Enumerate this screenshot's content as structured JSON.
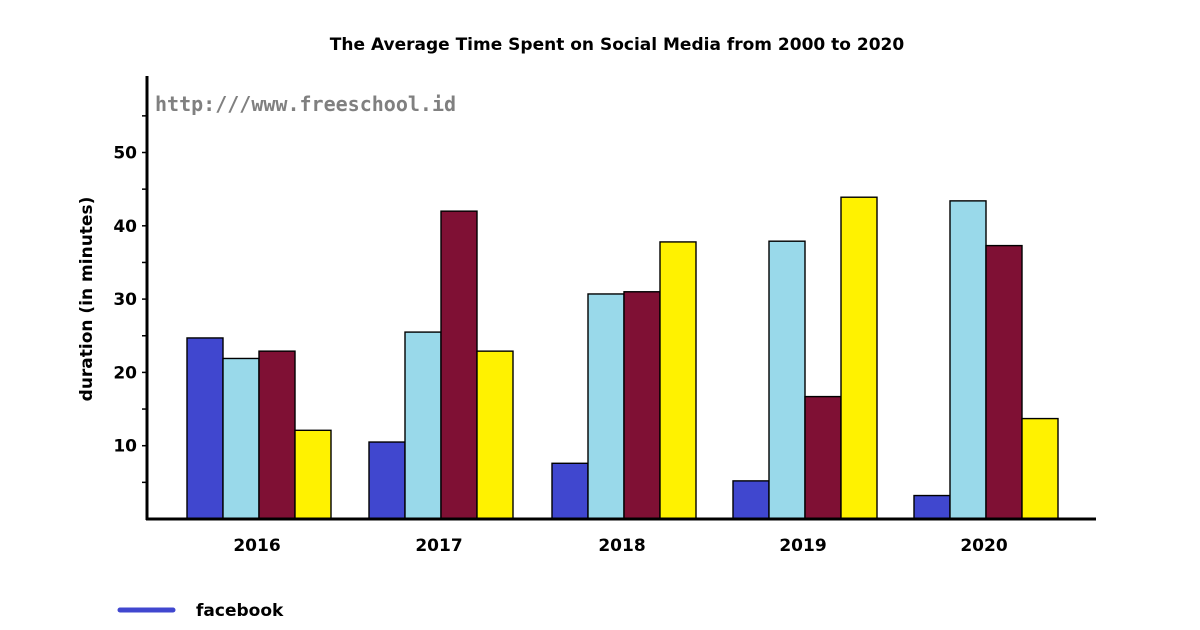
{
  "watermark": "http:///www.freeschool.id",
  "chart_data": {
    "type": "bar",
    "title": "The Average Time Spent on Social Media  from 2000 to 2020",
    "ylabel": "duration (in minutes)",
    "xlabel": "",
    "ylim": [
      0,
      60
    ],
    "yticks": [
      10,
      20,
      30,
      40,
      50
    ],
    "categories": [
      "2016",
      "2017",
      "2018",
      "2019",
      "2020"
    ],
    "series": [
      {
        "name": "facebook",
        "color": "#4047cf",
        "values": [
          24.7,
          10.5,
          7.6,
          5.2,
          3.2
        ]
      },
      {
        "color": "#99d9ea",
        "values": [
          21.9,
          25.5,
          30.7,
          37.9,
          43.4
        ]
      },
      {
        "color": "#7f1034",
        "values": [
          22.9,
          42.0,
          31.0,
          16.7,
          37.3
        ]
      },
      {
        "color": "#fff200",
        "values": [
          12.1,
          22.9,
          37.8,
          43.9,
          13.7
        ]
      }
    ],
    "grid": false,
    "legend": "bottom-left"
  }
}
